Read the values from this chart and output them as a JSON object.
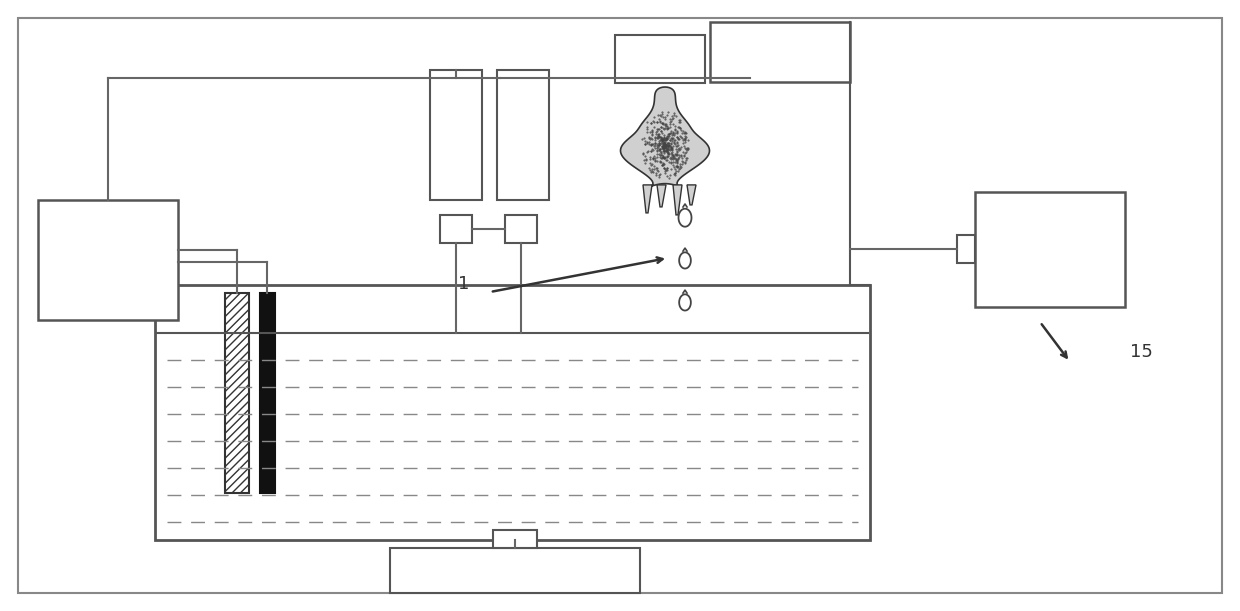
{
  "fig_width": 12.4,
  "fig_height": 6.11,
  "bg_color": "white",
  "line_color": "#666666",
  "label_1": "1",
  "label_15": "15"
}
